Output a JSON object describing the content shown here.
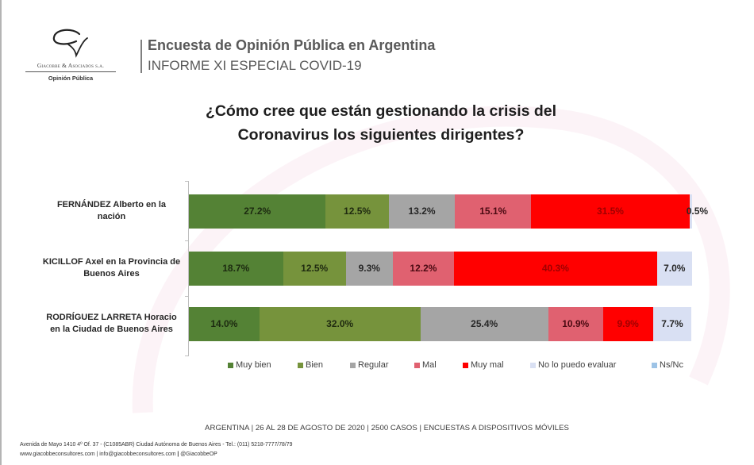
{
  "header": {
    "logo": {
      "brand": "Giacobbe & Asociados s.a.",
      "tagline": "Opinión Pública"
    },
    "title": "Encuesta de Opinión Pública en Argentina",
    "subtitle": "INFORME XI ESPECIAL COVID-19"
  },
  "chart_data": {
    "type": "bar",
    "orientation": "horizontal",
    "stacked": true,
    "title": "¿Cómo cree que están gestionando la crisis del Coronavirus los siguientes dirigentes?",
    "title_lines": [
      "¿Cómo cree que están gestionando la crisis del",
      "Coronavirus los siguientes dirigentes?"
    ],
    "xlabel": "",
    "ylabel": "",
    "xlim": [
      0,
      100
    ],
    "unit": "%",
    "grid": false,
    "legend": "bottom",
    "categories": [
      "FERNÁNDEZ Alberto en la nación",
      "KICILLOF Axel en la Provincia de Buenos Aires",
      "RODRÍGUEZ LARRETA Horacio en la Ciudad de Buenos Aires"
    ],
    "category_lines": [
      [
        "FERNÁNDEZ Alberto en la",
        "nación"
      ],
      [
        "KICILLOF Axel en la Provincia de",
        "Buenos Aires"
      ],
      [
        "RODRÍGUEZ LARRETA Horacio",
        "en la Ciudad de Buenos Aires"
      ]
    ],
    "series": [
      {
        "name": "Muy bien",
        "color": "#548235",
        "label_color": "#1c2a10",
        "values": [
          27.2,
          18.7,
          14.0
        ],
        "labels": [
          "27.2%",
          "18.7%",
          "14.0%"
        ]
      },
      {
        "name": "Bien",
        "color": "#76933c",
        "label_color": "#1f2a10",
        "values": [
          12.5,
          12.5,
          32.0
        ],
        "labels": [
          "12.5%",
          "12.5%",
          "32.0%"
        ]
      },
      {
        "name": "Regular",
        "color": "#a5a5a5",
        "label_color": "#262626",
        "values": [
          13.2,
          9.3,
          25.4
        ],
        "labels": [
          "13.2%",
          "9.3%",
          "25.4%"
        ]
      },
      {
        "name": "Mal",
        "color": "#e06170",
        "label_color": "#4a0a12",
        "values": [
          15.1,
          12.2,
          10.9
        ],
        "labels": [
          "15.1%",
          "12.2%",
          "10.9%"
        ]
      },
      {
        "name": "Muy mal",
        "color": "#ff0000",
        "label_color": "#a00000",
        "values": [
          31.5,
          40.3,
          9.9
        ],
        "labels": [
          "31.5%",
          "40.3%",
          "9.9%"
        ]
      },
      {
        "name": "No lo puedo evaluar",
        "color": "#d9e0f3",
        "label_color": "#262626",
        "values": [
          0.5,
          7.0,
          7.7
        ],
        "labels": [
          "0.5%",
          "7.0%",
          "7.7%"
        ]
      },
      {
        "name": "Ns/Nc",
        "color": "#9dc3e6",
        "label_color": "#262626",
        "values": [
          0,
          0,
          0
        ],
        "labels": [
          "",
          "",
          ""
        ]
      }
    ]
  },
  "footer": {
    "meta": "ARGENTINA | 26 AL 28 DE AGOSTO DE 2020 | 2500 CASOS | ENCUESTAS A DISPOSITIVOS MÓVILES",
    "address": "Avenida de Mayo 1410 4º Of. 37 - (C1085ABR) Ciudad Autónoma de Buenos Aires - Tel.: (011) 5218-7777/78/79",
    "website": "www.giacobbeconsultores.com",
    "email": "info@giacobbeconsultores.com",
    "social": "@GiacobbeOP"
  }
}
